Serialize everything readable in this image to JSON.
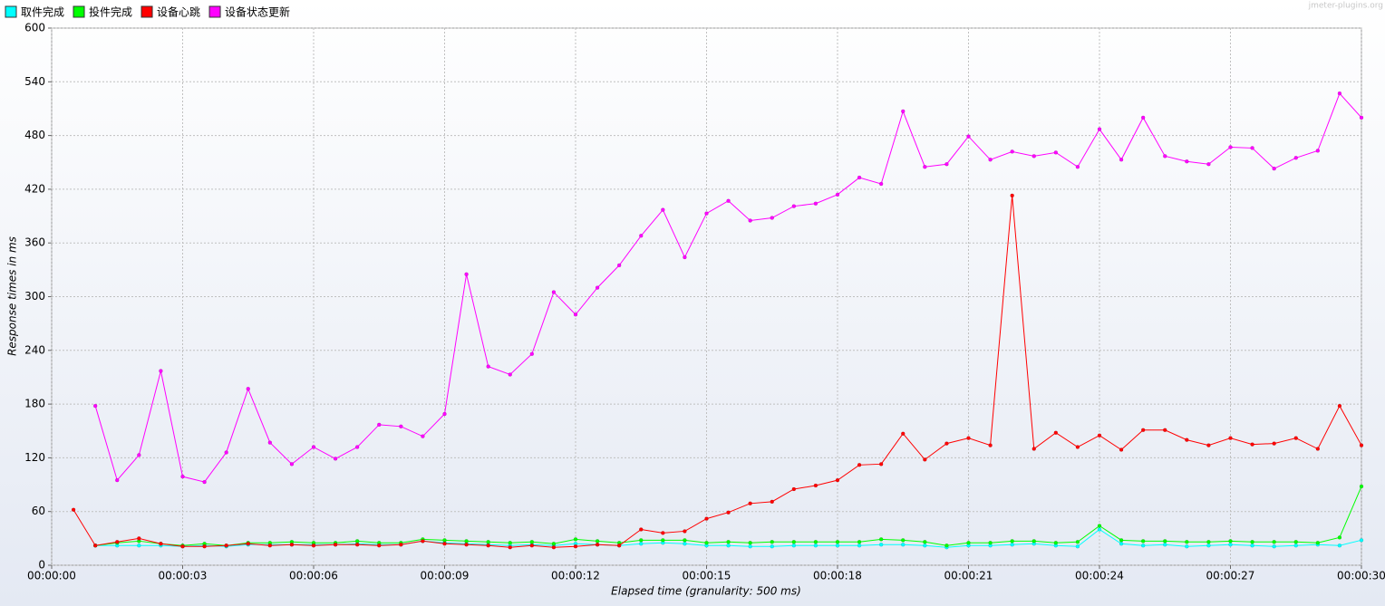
{
  "chart_data": {
    "type": "line",
    "watermark": "jmeter-plugins.org",
    "ylabel": "Response times in ms",
    "xlabel": "Elapsed time (granularity: 500 ms)",
    "grid": true,
    "legend": "top-left",
    "markers": true,
    "xlim": [
      0,
      30
    ],
    "ylim": [
      0,
      600
    ],
    "yticks": [
      0,
      60,
      120,
      180,
      240,
      300,
      360,
      420,
      480,
      540,
      600
    ],
    "xticks": [
      {
        "value": 0,
        "label": "00:00:00"
      },
      {
        "value": 3,
        "label": "00:00:03"
      },
      {
        "value": 6,
        "label": "00:00:06"
      },
      {
        "value": 9,
        "label": "00:00:09"
      },
      {
        "value": 12,
        "label": "00:00:12"
      },
      {
        "value": 15,
        "label": "00:00:15"
      },
      {
        "value": 18,
        "label": "00:00:18"
      },
      {
        "value": 21,
        "label": "00:00:21"
      },
      {
        "value": 24,
        "label": "00:00:24"
      },
      {
        "value": 27,
        "label": "00:00:27"
      },
      {
        "value": 30,
        "label": "00:00:30"
      }
    ],
    "x": [
      0.5,
      1,
      1.5,
      2,
      2.5,
      3,
      3.5,
      4,
      4.5,
      5,
      5.5,
      6,
      6.5,
      7,
      7.5,
      8,
      8.5,
      9,
      9.5,
      10,
      10.5,
      11,
      11.5,
      12,
      12.5,
      13,
      13.5,
      14,
      14.5,
      15,
      15.5,
      16,
      16.5,
      17,
      17.5,
      18,
      18.5,
      19,
      19.5,
      20,
      20.5,
      21,
      21.5,
      22,
      22.5,
      23,
      23.5,
      24,
      24.5,
      25,
      25.5,
      26,
      26.5,
      27,
      27.5,
      28,
      28.5,
      29,
      29.5,
      30
    ],
    "series": [
      {
        "name": "取件完成",
        "color": "#00ffff",
        "values": [
          null,
          22,
          22,
          22,
          22,
          21,
          22,
          21,
          23,
          23,
          23,
          23,
          23,
          24,
          23,
          23,
          27,
          25,
          24,
          23,
          22,
          23,
          22,
          24,
          23,
          22,
          24,
          25,
          24,
          22,
          22,
          21,
          21,
          22,
          22,
          22,
          22,
          23,
          23,
          22,
          20,
          22,
          22,
          23,
          24,
          22,
          21,
          40,
          24,
          22,
          23,
          21,
          22,
          23,
          22,
          21,
          22,
          23,
          22,
          28
        ]
      },
      {
        "name": "投件完成",
        "color": "#00ff00",
        "values": [
          null,
          22,
          25,
          27,
          24,
          22,
          24,
          22,
          25,
          25,
          26,
          25,
          25,
          27,
          25,
          25,
          29,
          28,
          27,
          26,
          25,
          26,
          24,
          29,
          27,
          25,
          28,
          28,
          28,
          25,
          26,
          25,
          26,
          26,
          26,
          26,
          26,
          29,
          28,
          26,
          22,
          25,
          25,
          27,
          27,
          25,
          26,
          44,
          28,
          27,
          27,
          26,
          26,
          27,
          26,
          26,
          26,
          25,
          31,
          88
        ]
      },
      {
        "name": "设备心跳",
        "color": "#ff0000",
        "values": [
          62,
          22,
          26,
          30,
          24,
          21,
          21,
          22,
          24,
          22,
          23,
          22,
          23,
          23,
          22,
          23,
          27,
          24,
          23,
          22,
          20,
          22,
          20,
          21,
          23,
          22,
          40,
          36,
          38,
          52,
          59,
          69,
          71,
          85,
          89,
          95,
          112,
          113,
          147,
          118,
          136,
          142,
          134,
          413,
          130,
          148,
          132,
          145,
          129,
          151,
          151,
          140,
          134,
          142,
          135,
          136,
          142,
          130,
          178,
          134
        ]
      },
      {
        "name": "设备状态更新",
        "color": "#ff00ff",
        "values": [
          null,
          178,
          95,
          123,
          217,
          99,
          93,
          126,
          197,
          137,
          113,
          132,
          119,
          132,
          157,
          155,
          144,
          169,
          325,
          222,
          213,
          236,
          305,
          280,
          310,
          335,
          368,
          397,
          344,
          393,
          407,
          385,
          388,
          401,
          404,
          414,
          433,
          426,
          507,
          445,
          448,
          479,
          453,
          462,
          457,
          461,
          445,
          487,
          453,
          500,
          457,
          451,
          448,
          467,
          466,
          443,
          455,
          463,
          527,
          500
        ]
      }
    ]
  }
}
